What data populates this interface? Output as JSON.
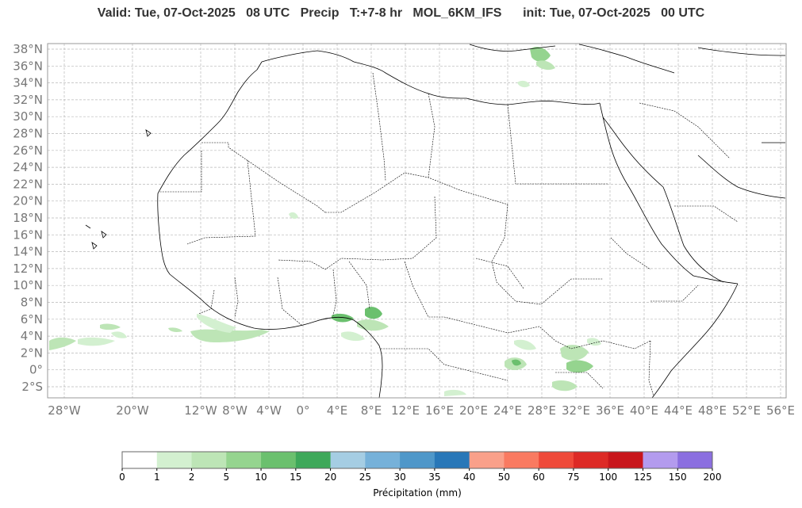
{
  "title": "Valid: Tue, 07-Oct-2025   08 UTC   Precip   T:+7-8 hr   MOL_6KM_IFS      init: Tue, 07-Oct-2025   00 UTC",
  "map": {
    "lat_labels": [
      "38°N",
      "36°N",
      "34°N",
      "32°N",
      "30°N",
      "28°N",
      "26°N",
      "24°N",
      "22°N",
      "20°N",
      "18°N",
      "16°N",
      "14°N",
      "12°N",
      "10°N",
      "8°N",
      "6°N",
      "4°N",
      "2°N",
      "0°",
      "2°S"
    ],
    "lon_labels": [
      "28°W",
      "20°W",
      "12°W",
      "8°W",
      "4°W",
      "0°",
      "4°E",
      "8°E",
      "12°E",
      "16°E",
      "20°E",
      "24°E",
      "28°E",
      "32°E",
      "36°E",
      "40°E",
      "44°E",
      "48°E",
      "52°E",
      "56°E"
    ],
    "colors": {
      "land_outline": "#000000",
      "grid": "#b0b0b0",
      "frame": "#999999"
    }
  },
  "colorbar": {
    "title": "Précipitation (mm)",
    "ticks": [
      "0",
      "1",
      "2",
      "5",
      "10",
      "15",
      "20",
      "25",
      "30",
      "35",
      "40",
      "50",
      "60",
      "75",
      "100",
      "125",
      "150",
      "200"
    ],
    "colors": [
      "#ffffff",
      "#d3f0d0",
      "#bde5b6",
      "#95d48f",
      "#6bc06e",
      "#3ea85a",
      "#a5cde3",
      "#76b1d9",
      "#4f97c9",
      "#2877b8",
      "#f9a08a",
      "#f97a61",
      "#ef4a3a",
      "#dd2a26",
      "#c8161c",
      "#b39bee",
      "#8b6fe0",
      "#4b007f"
    ]
  }
}
